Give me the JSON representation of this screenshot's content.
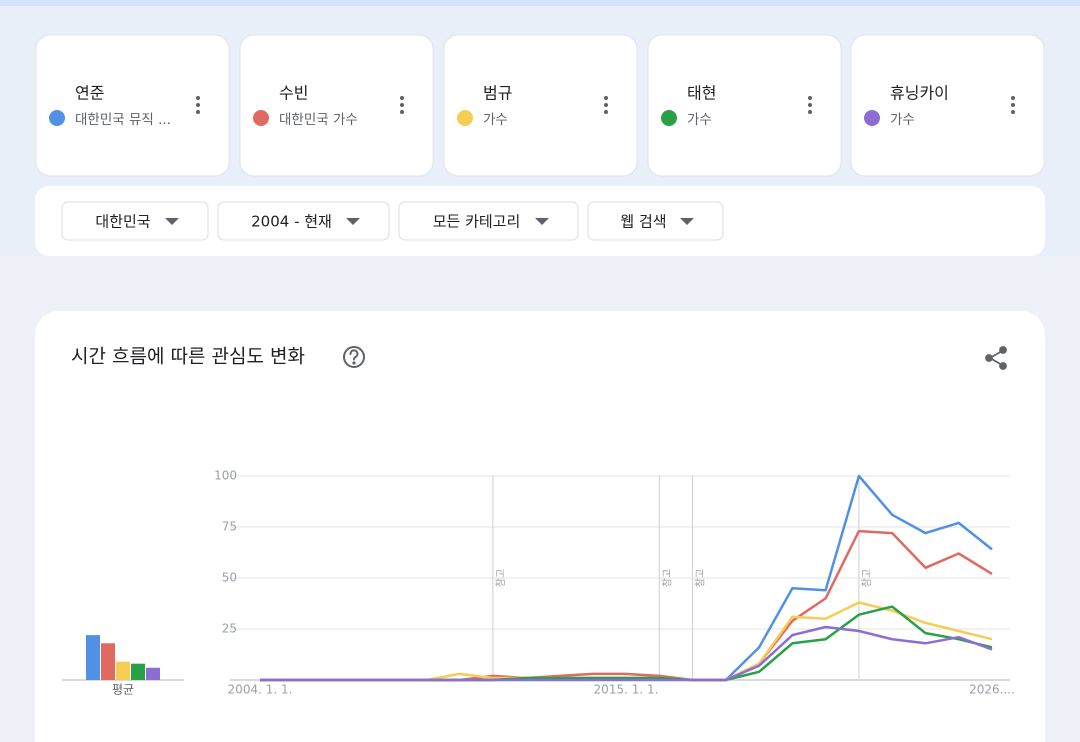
{
  "filters": [
    "대한민국",
    "2004 - 현재",
    "모든 카테고리",
    "웹 검색"
  ],
  "chart_data": {
    "type": "line",
    "title": "시간 흐름에 따른 관심도 변화",
    "categories": [
      "2004. 1. 1.",
      null,
      null,
      null,
      null,
      null,
      null,
      null,
      null,
      null,
      null,
      "2015. 1. 1.",
      null,
      null,
      null,
      null,
      null,
      null,
      null,
      null,
      null,
      null,
      "2026...."
    ],
    "series": [
      {
        "name": "연준",
        "subtitle": "대한민국 뮤직 ...",
        "color": "#5091e6",
        "values": [
          0,
          0,
          0,
          0,
          0,
          0,
          0,
          0,
          1,
          1,
          1,
          1,
          1,
          0,
          0,
          16,
          45,
          44,
          100,
          81,
          72,
          77,
          64
        ]
      },
      {
        "name": "수빈",
        "subtitle": "대한민국 가수",
        "color": "#e06a60",
        "values": [
          0,
          0,
          0,
          0,
          0,
          0,
          0,
          2,
          1,
          2,
          3,
          3,
          2,
          0,
          0,
          8,
          29,
          40,
          73,
          72,
          55,
          62,
          52
        ]
      },
      {
        "name": "범규",
        "subtitle": "가수",
        "color": "#f5cd55",
        "values": [
          0,
          0,
          0,
          0,
          0,
          0,
          3,
          1,
          1,
          1,
          1,
          1,
          1,
          0,
          0,
          8,
          31,
          30,
          38,
          34,
          28,
          24,
          20
        ]
      },
      {
        "name": "태현",
        "subtitle": "가수",
        "color": "#28a146",
        "values": [
          0,
          0,
          0,
          0,
          0,
          0,
          0,
          0,
          1,
          1,
          1,
          1,
          1,
          0,
          0,
          4,
          18,
          20,
          32,
          36,
          23,
          20,
          16
        ]
      },
      {
        "name": "휴닝카이",
        "subtitle": "가수",
        "color": "#8b6dd3",
        "values": [
          0,
          0,
          0,
          0,
          0,
          0,
          0,
          0,
          0,
          0,
          0,
          0,
          0,
          0,
          0,
          7,
          22,
          26,
          24,
          20,
          18,
          21,
          15
        ]
      }
    ],
    "ylim": [
      0,
      100
    ],
    "yticks": [
      25,
      50,
      75,
      100
    ],
    "grid": true,
    "annotations": [
      {
        "index": 7,
        "text": "참고"
      },
      {
        "index": 12,
        "text": "참고"
      },
      {
        "index": 13,
        "text": "참고"
      },
      {
        "index": 18,
        "text": "참고"
      }
    ],
    "averages": {
      "label": "평균",
      "values": [
        22,
        18,
        9,
        8,
        6
      ]
    }
  }
}
